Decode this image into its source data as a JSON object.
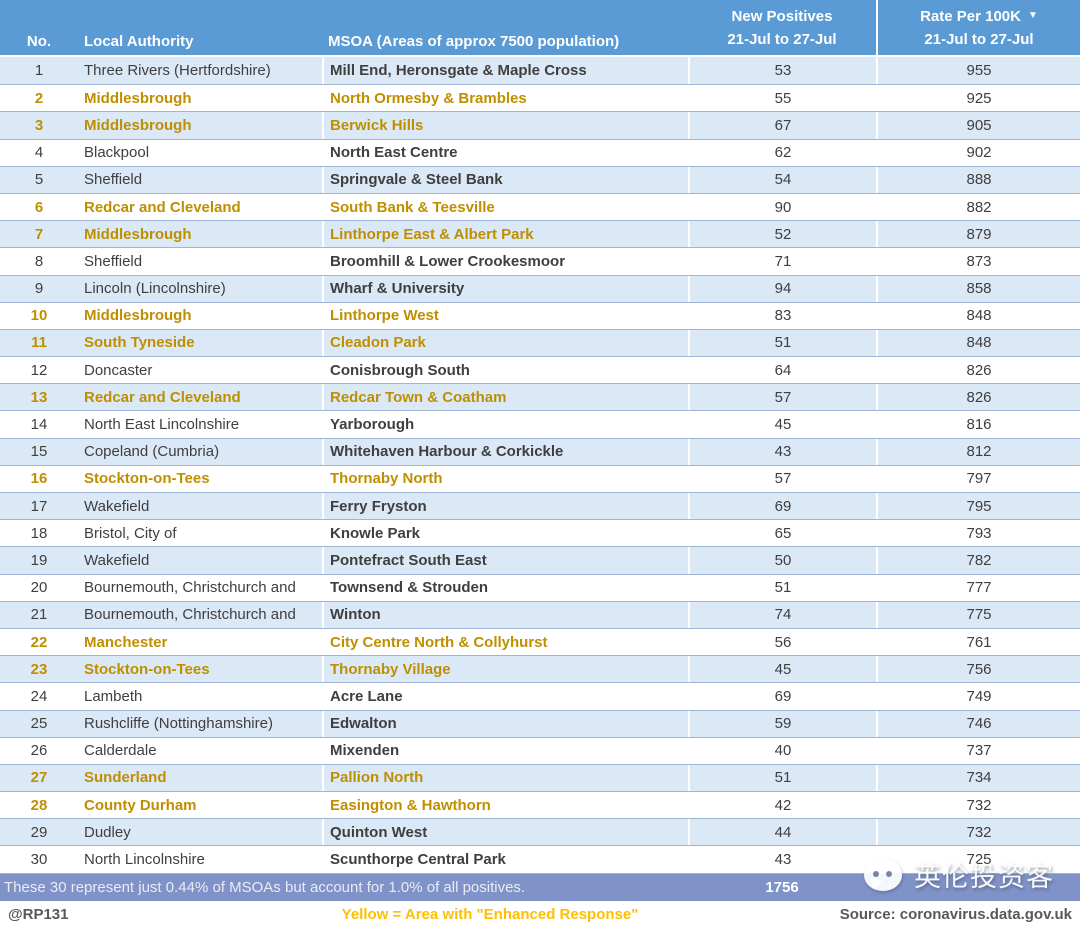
{
  "header": {
    "col_no": "No.",
    "col_la": "Local Authority",
    "col_msoa": "MSOA (Areas of approx 7500 population)",
    "col_pos_top": "New Positives",
    "col_pos_bottom": "21-Jul to 27-Jul",
    "col_rate_top": "Rate Per 100K",
    "col_rate_sort": "▼",
    "col_rate_bottom": "21-Jul to 27-Jul"
  },
  "chart_data": {
    "type": "table",
    "columns": [
      "No.",
      "Local Authority",
      "MSOA (Areas of approx 7500 population)",
      "New Positives 21-Jul to 27-Jul",
      "Rate Per 100K 21-Jul to 27-Jul"
    ],
    "rows": [
      {
        "no": 1,
        "local_authority": "Three Rivers (Hertfordshire)",
        "msoa": "Mill End, Heronsgate & Maple Cross",
        "new_positives": 53,
        "rate": 955,
        "enhanced": false
      },
      {
        "no": 2,
        "local_authority": "Middlesbrough",
        "msoa": "North Ormesby & Brambles",
        "new_positives": 55,
        "rate": 925,
        "enhanced": true
      },
      {
        "no": 3,
        "local_authority": "Middlesbrough",
        "msoa": "Berwick Hills",
        "new_positives": 67,
        "rate": 905,
        "enhanced": true
      },
      {
        "no": 4,
        "local_authority": "Blackpool",
        "msoa": "North East Centre",
        "new_positives": 62,
        "rate": 902,
        "enhanced": false
      },
      {
        "no": 5,
        "local_authority": "Sheffield",
        "msoa": "Springvale & Steel Bank",
        "new_positives": 54,
        "rate": 888,
        "enhanced": false
      },
      {
        "no": 6,
        "local_authority": "Redcar and Cleveland",
        "msoa": "South Bank & Teesville",
        "new_positives": 90,
        "rate": 882,
        "enhanced": true
      },
      {
        "no": 7,
        "local_authority": "Middlesbrough",
        "msoa": "Linthorpe East & Albert Park",
        "new_positives": 52,
        "rate": 879,
        "enhanced": true
      },
      {
        "no": 8,
        "local_authority": "Sheffield",
        "msoa": "Broomhill & Lower Crookesmoor",
        "new_positives": 71,
        "rate": 873,
        "enhanced": false
      },
      {
        "no": 9,
        "local_authority": "Lincoln (Lincolnshire)",
        "msoa": "Wharf & University",
        "new_positives": 94,
        "rate": 858,
        "enhanced": false
      },
      {
        "no": 10,
        "local_authority": "Middlesbrough",
        "msoa": "Linthorpe West",
        "new_positives": 83,
        "rate": 848,
        "enhanced": true
      },
      {
        "no": 11,
        "local_authority": "South Tyneside",
        "msoa": "Cleadon Park",
        "new_positives": 51,
        "rate": 848,
        "enhanced": true
      },
      {
        "no": 12,
        "local_authority": "Doncaster",
        "msoa": "Conisbrough South",
        "new_positives": 64,
        "rate": 826,
        "enhanced": false
      },
      {
        "no": 13,
        "local_authority": "Redcar and Cleveland",
        "msoa": "Redcar Town & Coatham",
        "new_positives": 57,
        "rate": 826,
        "enhanced": true
      },
      {
        "no": 14,
        "local_authority": "North East Lincolnshire",
        "msoa": "Yarborough",
        "new_positives": 45,
        "rate": 816,
        "enhanced": false
      },
      {
        "no": 15,
        "local_authority": "Copeland (Cumbria)",
        "msoa": "Whitehaven Harbour & Corkickle",
        "new_positives": 43,
        "rate": 812,
        "enhanced": false
      },
      {
        "no": 16,
        "local_authority": "Stockton-on-Tees",
        "msoa": "Thornaby North",
        "new_positives": 57,
        "rate": 797,
        "enhanced": true
      },
      {
        "no": 17,
        "local_authority": "Wakefield",
        "msoa": "Ferry Fryston",
        "new_positives": 69,
        "rate": 795,
        "enhanced": false
      },
      {
        "no": 18,
        "local_authority": "Bristol, City of",
        "msoa": "Knowle Park",
        "new_positives": 65,
        "rate": 793,
        "enhanced": false
      },
      {
        "no": 19,
        "local_authority": "Wakefield",
        "msoa": "Pontefract South East",
        "new_positives": 50,
        "rate": 782,
        "enhanced": false
      },
      {
        "no": 20,
        "local_authority": "Bournemouth, Christchurch and",
        "msoa": "Townsend & Strouden",
        "new_positives": 51,
        "rate": 777,
        "enhanced": false
      },
      {
        "no": 21,
        "local_authority": "Bournemouth, Christchurch and",
        "msoa": "Winton",
        "new_positives": 74,
        "rate": 775,
        "enhanced": false
      },
      {
        "no": 22,
        "local_authority": "Manchester",
        "msoa": "City Centre North & Collyhurst",
        "new_positives": 56,
        "rate": 761,
        "enhanced": true
      },
      {
        "no": 23,
        "local_authority": "Stockton-on-Tees",
        "msoa": "Thornaby Village",
        "new_positives": 45,
        "rate": 756,
        "enhanced": true
      },
      {
        "no": 24,
        "local_authority": "Lambeth",
        "msoa": "Acre Lane",
        "new_positives": 69,
        "rate": 749,
        "enhanced": false
      },
      {
        "no": 25,
        "local_authority": "Rushcliffe (Nottinghamshire)",
        "msoa": "Edwalton",
        "new_positives": 59,
        "rate": 746,
        "enhanced": false
      },
      {
        "no": 26,
        "local_authority": "Calderdale",
        "msoa": "Mixenden",
        "new_positives": 40,
        "rate": 737,
        "enhanced": false
      },
      {
        "no": 27,
        "local_authority": "Sunderland",
        "msoa": "Pallion North",
        "new_positives": 51,
        "rate": 734,
        "enhanced": true
      },
      {
        "no": 28,
        "local_authority": "County Durham",
        "msoa": "Easington & Hawthorn",
        "new_positives": 42,
        "rate": 732,
        "enhanced": true
      },
      {
        "no": 29,
        "local_authority": "Dudley",
        "msoa": "Quinton West",
        "new_positives": 44,
        "rate": 732,
        "enhanced": false
      },
      {
        "no": 30,
        "local_authority": "North Lincolnshire",
        "msoa": "Scunthorpe Central Park",
        "new_positives": 43,
        "rate": 725,
        "enhanced": false
      }
    ]
  },
  "summary": {
    "text": "These 30 represent just 0.44% of MSOAs but account for 1.0% of all positives.",
    "total": "1756"
  },
  "footer": {
    "handle": "@RP131",
    "legend": "Yellow = Area with \"Enhanced Response\"",
    "source": "Source: coronavirus.data.gov.uk"
  },
  "watermark": {
    "text": "英伦投资客",
    "icon": "wechat-icon"
  },
  "colors": {
    "header_bg": "#5B9BD5",
    "band_bg": "#DBE8F6",
    "grid_line": "#A0B4D6",
    "enhanced_text": "#BF8F00",
    "summary_bg": "#8093C8",
    "legend_yellow": "#FFC000"
  }
}
